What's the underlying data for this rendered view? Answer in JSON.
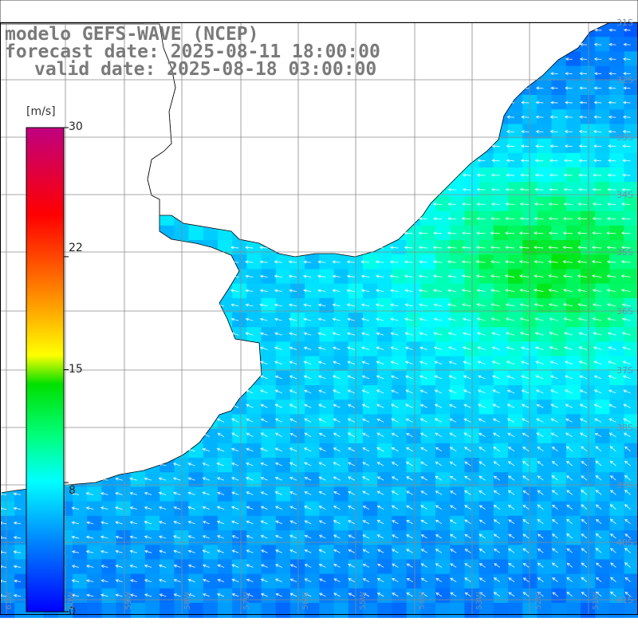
{
  "header": {
    "model_line": "modelo GEFS-WAVE (NCEP)",
    "forecast_line": "forecast date: 2025-08-11 18:00:00",
    "valid_line": "valid date: 2025-08-18 03:00:00"
  },
  "colorbar": {
    "unit": "[m/s]",
    "ticks": [
      "30",
      "22",
      "15",
      "8",
      "0"
    ],
    "tick_values": [
      30,
      22,
      15,
      8,
      0
    ],
    "range": [
      0,
      30
    ]
  },
  "grid": {
    "lat_labels": [
      "31S",
      "32S",
      "33S",
      "34S",
      "35S",
      "36S",
      "37S",
      "38S",
      "39S",
      "40S",
      "41S"
    ],
    "lon_labels": [
      "61W",
      "60W",
      "59W",
      "58W",
      "57W",
      "56W",
      "55W",
      "54W",
      "53W",
      "52W",
      "51W"
    ]
  },
  "colors": {
    "land": "#ffffff",
    "coast": "#000000",
    "grid": "#8a8a8a",
    "arrows": "#ffffff",
    "title": "#7a7a7a"
  }
}
